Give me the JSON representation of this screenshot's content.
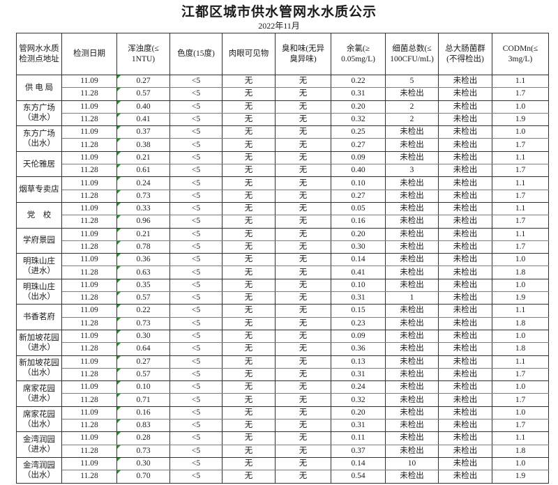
{
  "title": "江都区城市供水管网水水质公示",
  "subtitle": "2022年11月",
  "table": {
    "headers": [
      "管网水水质\n检测点地址",
      "检测日期",
      "浑浊度(≤\n1NTU)",
      "色度(15度)",
      "肉眼可见物",
      "臭和味(无异\n臭异味)",
      "余氯(≥\n0.05mg/L)",
      "细菌总数(≤\n100CFU/mL)",
      "总大肠菌群\n(不得检出)",
      "CODMn(≤\n3mg/L)"
    ],
    "colors": {
      "flag_green": "#1f9d1f"
    },
    "groups": [
      {
        "location": "供 电 局",
        "rows": [
          {
            "date": "11.09",
            "values": [
              "0.27",
              "<5",
              "无",
              "无",
              "0.22",
              "5",
              "未检出",
              "1.1"
            ]
          },
          {
            "date": "11.28",
            "values": [
              "0.57",
              "<5",
              "无",
              "无",
              "0.31",
              "未检出",
              "未检出",
              "1.7"
            ]
          }
        ]
      },
      {
        "location": "东方广场\n（进水）",
        "rows": [
          {
            "date": "11.09",
            "values": [
              "0.40",
              "<5",
              "无",
              "无",
              "0.20",
              "2",
              "未检出",
              "1.0"
            ]
          },
          {
            "date": "11.28",
            "values": [
              "0.41",
              "<5",
              "无",
              "无",
              "0.32",
              "2",
              "未检出",
              "1.9"
            ]
          }
        ]
      },
      {
        "location": "东方广场\n（出水）",
        "rows": [
          {
            "date": "11.09",
            "values": [
              "0.37",
              "<5",
              "无",
              "无",
              "0.25",
              "未检出",
              "未检出",
              "1.0"
            ]
          },
          {
            "date": "11.28",
            "values": [
              "0.38",
              "<5",
              "无",
              "无",
              "0.27",
              "未检出",
              "未检出",
              "1.7"
            ]
          }
        ]
      },
      {
        "location": "天伦雅居",
        "rows": [
          {
            "date": "11.09",
            "values": [
              "0.21",
              "<5",
              "无",
              "无",
              "0.09",
              "未检出",
              "未检出",
              "1.1"
            ]
          },
          {
            "date": "11.28",
            "values": [
              "0.61",
              "<5",
              "无",
              "无",
              "0.40",
              "3",
              "未检出",
              "1.7"
            ]
          }
        ]
      },
      {
        "location": "烟草专卖店",
        "rows": [
          {
            "date": "11.09",
            "values": [
              "0.24",
              "<5",
              "无",
              "无",
              "0.10",
              "未检出",
              "未检出",
              "1.1"
            ]
          },
          {
            "date": "11.28",
            "values": [
              "0.73",
              "<5",
              "无",
              "无",
              "0.27",
              "未检出",
              "未检出",
              "1.7"
            ]
          }
        ]
      },
      {
        "location": "党　校",
        "rows": [
          {
            "date": "11.09",
            "values": [
              "0.33",
              "<5",
              "无",
              "无",
              "0.05",
              "未检出",
              "未检出",
              "1.1"
            ]
          },
          {
            "date": "11.28",
            "values": [
              "0.96",
              "<5",
              "无",
              "无",
              "0.16",
              "未检出",
              "未检出",
              "1.7"
            ]
          }
        ]
      },
      {
        "location": "学府景园",
        "rows": [
          {
            "date": "11.09",
            "values": [
              "0.21",
              "<5",
              "无",
              "无",
              "0.20",
              "未检出",
              "未检出",
              "1.1"
            ]
          },
          {
            "date": "11.28",
            "values": [
              "0.78",
              "<5",
              "无",
              "无",
              "0.30",
              "未检出",
              "未检出",
              "1.7"
            ]
          }
        ]
      },
      {
        "location": "明珠山庄\n（进水）",
        "rows": [
          {
            "date": "11.09",
            "values": [
              "0.36",
              "<5",
              "无",
              "无",
              "0.14",
              "未检出",
              "未检出",
              "1.0"
            ]
          },
          {
            "date": "11.28",
            "values": [
              "0.63",
              "<5",
              "无",
              "无",
              "0.41",
              "未检出",
              "未检出",
              "1.8"
            ]
          }
        ]
      },
      {
        "location": "明珠山庄\n（出水）",
        "rows": [
          {
            "date": "11.09",
            "values": [
              "0.35",
              "<5",
              "无",
              "无",
              "0.10",
              "未检出",
              "未检出",
              "1.0"
            ]
          },
          {
            "date": "11.28",
            "values": [
              "0.57",
              "<5",
              "无",
              "无",
              "0.31",
              "1",
              "未检出",
              "1.9"
            ]
          }
        ]
      },
      {
        "location": "书香茗府",
        "rows": [
          {
            "date": "11.09",
            "values": [
              "0.22",
              "<5",
              "无",
              "无",
              "0.15",
              "未检出",
              "未检出",
              "1.1"
            ]
          },
          {
            "date": "11.28",
            "values": [
              "0.73",
              "<5",
              "无",
              "无",
              "0.23",
              "未检出",
              "未检出",
              "1.8"
            ]
          }
        ]
      },
      {
        "location": "新加坡花园\n（进水）",
        "rows": [
          {
            "date": "11.09",
            "values": [
              "0.30",
              "<5",
              "无",
              "无",
              "0.09",
              "未检出",
              "未检出",
              "1.0"
            ]
          },
          {
            "date": "11.28",
            "values": [
              "0.64",
              "<5",
              "无",
              "无",
              "0.36",
              "未检出",
              "未检出",
              "1.8"
            ]
          }
        ]
      },
      {
        "location": "新加坡花园\n（出水）",
        "rows": [
          {
            "date": "11.09",
            "values": [
              "0.27",
              "<5",
              "无",
              "无",
              "0.13",
              "未检出",
              "未检出",
              "1.1"
            ]
          },
          {
            "date": "11.28",
            "values": [
              "0.57",
              "<5",
              "无",
              "无",
              "0.31",
              "未检出",
              "未检出",
              "1.7"
            ]
          }
        ]
      },
      {
        "location": "席家花园\n（进水）",
        "rows": [
          {
            "date": "11.09",
            "values": [
              "0.10",
              "<5",
              "无",
              "无",
              "0.24",
              "未检出",
              "未检出",
              "1.0"
            ]
          },
          {
            "date": "11.28",
            "values": [
              "0.71",
              "<5",
              "无",
              "无",
              "0.32",
              "未检出",
              "未检出",
              "1.7"
            ]
          }
        ]
      },
      {
        "location": "席家花园\n（出水）",
        "rows": [
          {
            "date": "11.09",
            "values": [
              "0.16",
              "<5",
              "无",
              "无",
              "0.20",
              "未检出",
              "未检出",
              "1.0"
            ]
          },
          {
            "date": "11.28",
            "values": [
              "0.83",
              "<5",
              "无",
              "无",
              "0.31",
              "未检出",
              "未检出",
              "1.7"
            ]
          }
        ]
      },
      {
        "location": "金湾润园\n（进水）",
        "rows": [
          {
            "date": "11.09",
            "values": [
              "0.28",
              "<5",
              "无",
              "无",
              "0.11",
              "未检出",
              "未检出",
              "1.1"
            ]
          },
          {
            "date": "11.28",
            "values": [
              "0.73",
              "<5",
              "无",
              "无",
              "0.37",
              "未检出",
              "未检出",
              "1.8"
            ]
          }
        ]
      },
      {
        "location": "金湾润园\n（出水）",
        "rows": [
          {
            "date": "11.09",
            "values": [
              "0.30",
              "<5",
              "无",
              "无",
              "0.14",
              "10",
              "未检出",
              "1.0"
            ]
          },
          {
            "date": "11.28",
            "values": [
              "0.70",
              "<5",
              "无",
              "无",
              "0.54",
              "未检出",
              "未检出",
              "1.9"
            ]
          }
        ]
      }
    ]
  }
}
